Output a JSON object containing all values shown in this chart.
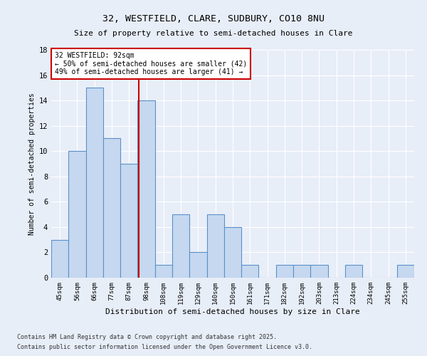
{
  "title1": "32, WESTFIELD, CLARE, SUDBURY, CO10 8NU",
  "title2": "Size of property relative to semi-detached houses in Clare",
  "xlabel": "Distribution of semi-detached houses by size in Clare",
  "ylabel": "Number of semi-detached properties",
  "categories": [
    "45sqm",
    "56sqm",
    "66sqm",
    "77sqm",
    "87sqm",
    "98sqm",
    "108sqm",
    "119sqm",
    "129sqm",
    "140sqm",
    "150sqm",
    "161sqm",
    "171sqm",
    "182sqm",
    "192sqm",
    "203sqm",
    "213sqm",
    "224sqm",
    "234sqm",
    "245sqm",
    "255sqm"
  ],
  "values": [
    3,
    10,
    15,
    11,
    9,
    14,
    1,
    5,
    2,
    5,
    4,
    1,
    0,
    1,
    1,
    1,
    0,
    1,
    0,
    0,
    1
  ],
  "bar_color": "#c5d8f0",
  "bar_edge_color": "#5a90c8",
  "vline_x_index": 4.55,
  "vline_color": "#cc0000",
  "annotation_line1": "32 WESTFIELD: 92sqm",
  "annotation_line2": "← 50% of semi-detached houses are smaller (42)",
  "annotation_line3": "49% of semi-detached houses are larger (41) →",
  "annotation_box_color": "#cc0000",
  "ylim": [
    0,
    18
  ],
  "yticks": [
    0,
    2,
    4,
    6,
    8,
    10,
    12,
    14,
    16,
    18
  ],
  "footer1": "Contains HM Land Registry data © Crown copyright and database right 2025.",
  "footer2": "Contains public sector information licensed under the Open Government Licence v3.0.",
  "bg_color": "#e8eef8",
  "plot_bg_color": "#e8eef8"
}
